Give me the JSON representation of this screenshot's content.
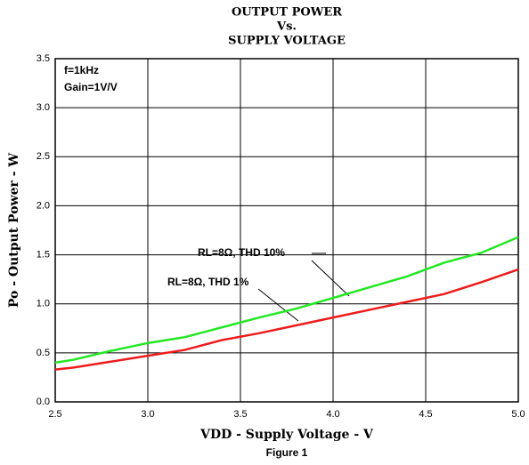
{
  "chart_data": {
    "type": "line",
    "title": [
      "OUTPUT POWER",
      "Vs.",
      "SUPPLY VOLTAGE"
    ],
    "xlabel": "VDD - Supply Voltage - V",
    "ylabel": "Po - Output Power - W",
    "footer": "Figure 1",
    "annotations": [
      "f=1kHz",
      "Gain=1V/V",
      "RL=8Ω, THD 10%",
      "RL=8Ω, THD 1%"
    ],
    "x": [
      2.5,
      2.6,
      2.8,
      3.0,
      3.2,
      3.4,
      3.6,
      3.8,
      4.0,
      4.2,
      4.4,
      4.6,
      4.8,
      5.0
    ],
    "series": [
      {
        "name": "RL=8Ω, THD 10%",
        "color": "#22e822",
        "values": [
          0.4,
          0.43,
          0.52,
          0.6,
          0.66,
          0.76,
          0.86,
          0.95,
          1.06,
          1.17,
          1.28,
          1.42,
          1.52,
          1.68
        ]
      },
      {
        "name": "RL=8Ω, THD 1%",
        "color": "#ee1c1c",
        "values": [
          0.33,
          0.35,
          0.41,
          0.47,
          0.53,
          0.63,
          0.7,
          0.78,
          0.86,
          0.94,
          1.02,
          1.1,
          1.22,
          1.35
        ]
      }
    ],
    "xlim": [
      2.5,
      5.0
    ],
    "xticks": [
      2.5,
      {
        "value": 3.0,
        "label": "3.0"
      },
      3.5,
      {
        "value": 4.0,
        "label": "4.0"
      },
      4.5,
      {
        "value": 5.0,
        "label": "5.0"
      }
    ],
    "ylim": [
      0,
      3.5
    ],
    "yticks": [
      {
        "value": 0,
        "label": "0.0"
      },
      0.5,
      {
        "value": 1,
        "label": "1.0"
      },
      1.5,
      {
        "value": 2,
        "label": "2.0"
      },
      2.5,
      {
        "value": 3,
        "label": "3.0"
      },
      3.5
    ],
    "grid": true
  }
}
